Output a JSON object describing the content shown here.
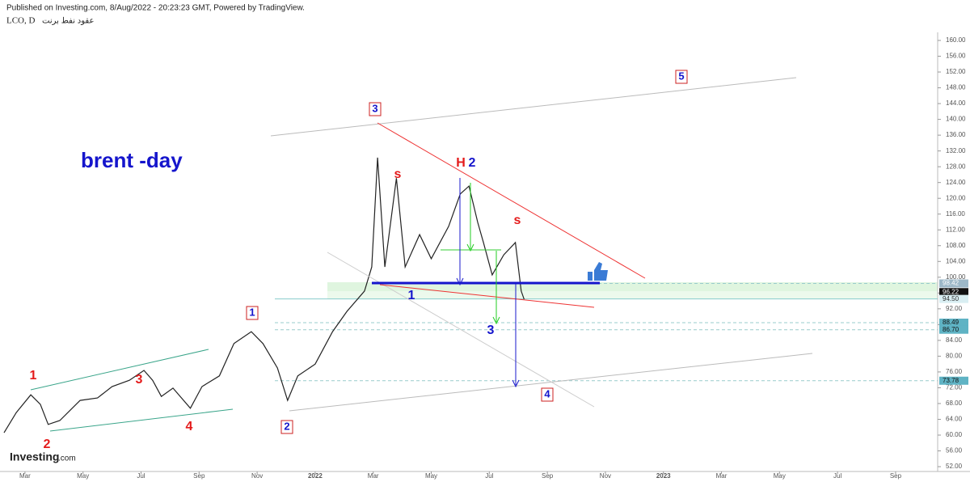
{
  "header": {
    "published": "Published on Investing.com, 8/Aug/2022 - 20:23:23 GMT, Powered by TradingView.",
    "symbol": "LCO, D",
    "instrument": "عقود نفط برنت"
  },
  "logo": "Investing",
  "logo_suffix": ".com",
  "chart_data": {
    "type": "line",
    "title": "brent -day",
    "color": "#222222",
    "x": [
      -0.72,
      -0.3,
      0.2,
      0.53,
      0.8,
      1.2,
      1.9,
      2.5,
      3.0,
      3.6,
      4.1,
      4.4,
      4.7,
      5.1,
      5.7,
      6.1,
      6.7,
      7.2,
      7.8,
      8.2,
      8.7,
      9.05,
      9.4,
      10.0,
      10.6,
      11.1,
      11.7,
      11.95,
      12.15,
      12.4,
      12.8,
      13.1,
      13.6,
      14.0,
      14.6,
      15.0,
      15.3,
      15.6,
      15.8,
      16.1,
      16.5,
      16.9,
      17.1,
      17.2
    ],
    "values": [
      60.6,
      65.7,
      70.2,
      67.8,
      62.7,
      63.7,
      68.8,
      69.4,
      72.3,
      73.9,
      76.4,
      73.9,
      69.8,
      71.9,
      66.8,
      72.3,
      75.0,
      83.2,
      86.2,
      83.2,
      77.0,
      68.8,
      75.0,
      78.0,
      86.2,
      91.4,
      96.5,
      102.6,
      130.3,
      102.6,
      125.1,
      102.6,
      110.8,
      104.7,
      112.9,
      121.1,
      123.1,
      113.9,
      108.8,
      100.6,
      105.7,
      108.8,
      96.5,
      94.4
    ],
    "xlim": [
      -0.86,
      31.45
    ],
    "ylim": [
      50.78,
      162.05
    ],
    "xticks": [
      {
        "value": 0,
        "label": "Mar"
      },
      {
        "value": 2,
        "label": "May"
      },
      {
        "value": 4,
        "label": "Jul"
      },
      {
        "value": 6,
        "label": "Sep"
      },
      {
        "value": 8,
        "label": "Nov"
      },
      {
        "value": 10,
        "label": "2022"
      },
      {
        "value": 12,
        "label": "Mar"
      },
      {
        "value": 14,
        "label": "May"
      },
      {
        "value": 16,
        "label": "Jul"
      },
      {
        "value": 18,
        "label": "Sep"
      },
      {
        "value": 20,
        "label": "Nov"
      },
      {
        "value": 22,
        "label": "2023"
      },
      {
        "value": 24,
        "label": "Mar"
      },
      {
        "value": 26,
        "label": "May"
      },
      {
        "value": 28,
        "label": "Jul"
      },
      {
        "value": 30,
        "label": "Sep"
      }
    ],
    "yticks": [
      {
        "value": 52,
        "label": "52.00"
      },
      {
        "value": 56,
        "label": "56.00"
      },
      {
        "value": 60,
        "label": "60.00"
      },
      {
        "value": 64,
        "label": "64.00"
      },
      {
        "value": 68,
        "label": "68.00"
      },
      {
        "value": 72,
        "label": "72.00"
      },
      {
        "value": 76,
        "label": "76.00"
      },
      {
        "value": 80,
        "label": "80.00"
      },
      {
        "value": 84,
        "label": "84.00"
      },
      {
        "value": 88,
        "label": "88.00"
      },
      {
        "value": 92,
        "label": "92.00"
      },
      {
        "value": 96,
        "label": "96.00"
      },
      {
        "value": 100,
        "label": "100.00"
      },
      {
        "value": 104,
        "label": "104.00"
      },
      {
        "value": 108,
        "label": "108.00"
      },
      {
        "value": 112,
        "label": "112.00"
      },
      {
        "value": 116,
        "label": "116.00"
      },
      {
        "value": 120,
        "label": "120.00"
      },
      {
        "value": 124,
        "label": "124.00"
      },
      {
        "value": 128,
        "label": "128.00"
      },
      {
        "value": 132,
        "label": "132.00"
      },
      {
        "value": 136,
        "label": "136.00"
      },
      {
        "value": 140,
        "label": "140.00"
      },
      {
        "value": 144,
        "label": "144.00"
      },
      {
        "value": 148,
        "label": "148.00"
      },
      {
        "value": 152,
        "label": "152.00"
      },
      {
        "value": 156,
        "label": "156.00"
      },
      {
        "value": 160,
        "label": "160.00"
      }
    ],
    "levels": [
      {
        "value": 98.42,
        "label": "98.42"
      },
      {
        "value": 96.22,
        "label": "96.22"
      },
      {
        "value": 94.5,
        "label": "94.50"
      },
      {
        "value": 88.49,
        "label": "88.49"
      },
      {
        "value": 86.7,
        "label": "86.70"
      },
      {
        "value": 73.78,
        "label": "73.78"
      }
    ],
    "annotations": [
      "1",
      "2",
      "3",
      "4",
      "1",
      "2",
      "3",
      "4",
      "5",
      "1",
      "3",
      "s",
      "s",
      "H",
      "2"
    ]
  }
}
